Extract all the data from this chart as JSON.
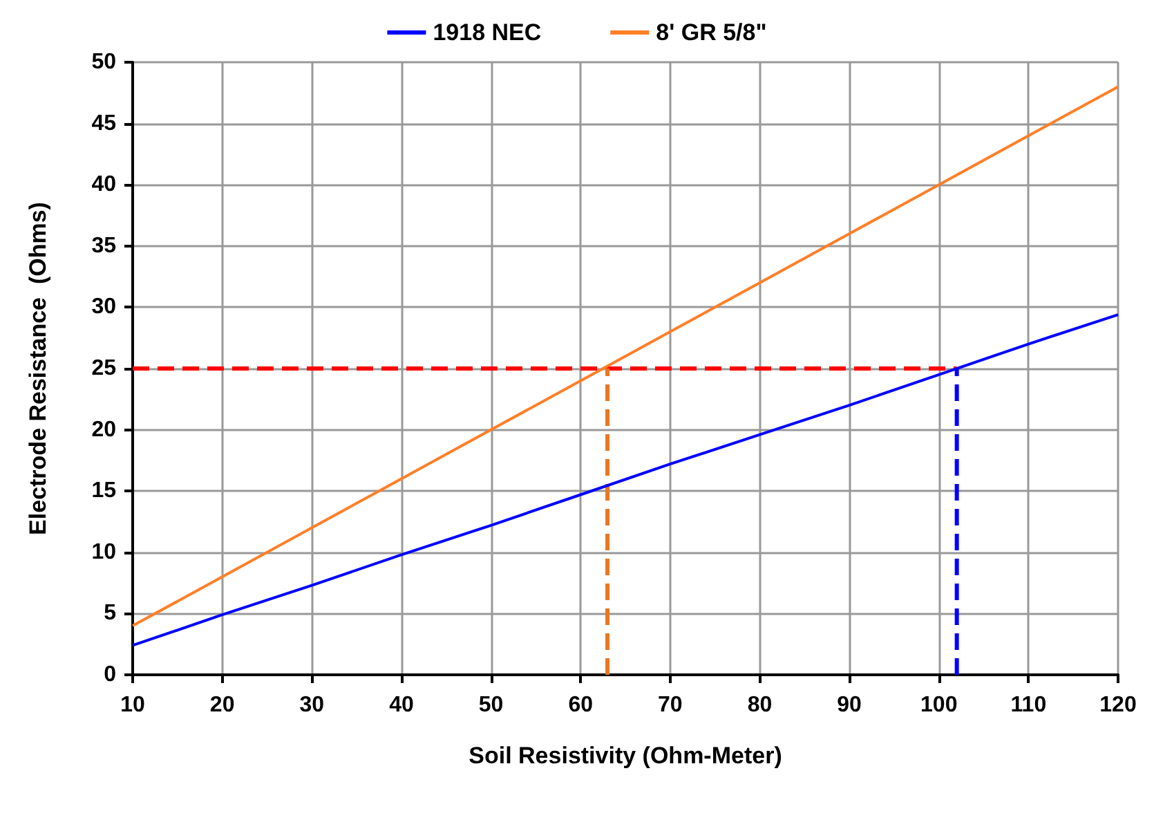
{
  "chart_data": {
    "type": "line",
    "xlabel": "Soil Resistivity (Ohm-Meter)",
    "ylabel": "Electrode Resistance  (Ohms)",
    "x": [
      10,
      20,
      30,
      40,
      50,
      60,
      70,
      80,
      90,
      100,
      110,
      120
    ],
    "series": [
      {
        "name": "1918 NEC",
        "color": "#0000ff",
        "values": [
          2.4,
          4.9,
          7.3,
          9.8,
          12.2,
          14.7,
          17.2,
          19.6,
          22,
          24.5,
          27,
          29.4
        ]
      },
      {
        "name": "8' GR 5/8\"",
        "color": "#ff7f27",
        "values": [
          4,
          8,
          12,
          16,
          20,
          24,
          28,
          32,
          36,
          40,
          44,
          48
        ]
      },
      {
        "color": "#ff0000",
        "line_style": "dashed",
        "x": [
          10,
          102
        ],
        "values": [
          25,
          25
        ]
      },
      {
        "color": "#e87722",
        "line_style": "dashed",
        "x": [
          63,
          63
        ],
        "values": [
          0,
          25
        ]
      },
      {
        "color": "#0000ff",
        "line_style": "dashed",
        "x": [
          102,
          102
        ],
        "values": [
          0,
          25
        ]
      }
    ],
    "xlim": [
      10,
      120
    ],
    "xticks": [
      10,
      20,
      30,
      40,
      50,
      60,
      70,
      80,
      90,
      100,
      110,
      120
    ],
    "ylim": [
      0,
      50
    ],
    "yticks": [
      0,
      5,
      10,
      15,
      20,
      25,
      30,
      35,
      40,
      45,
      50
    ],
    "grid": true,
    "legend": "top",
    "marker": "none",
    "line_style": "solid"
  }
}
